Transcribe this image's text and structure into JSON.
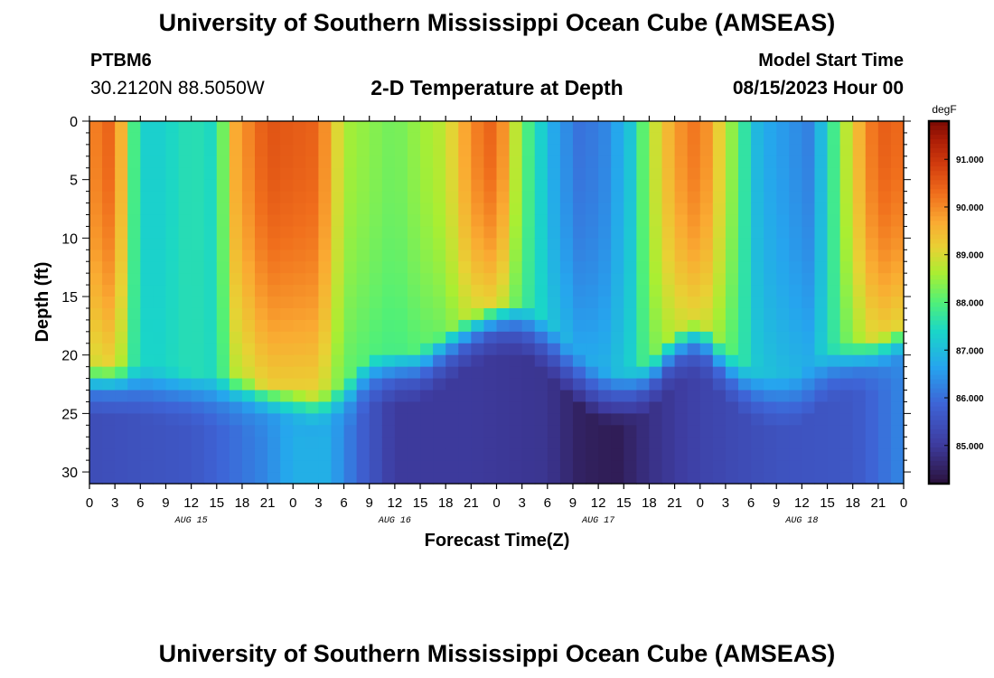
{
  "header": {
    "title": "University of Southern Mississippi Ocean Cube (AMSEAS)",
    "station_id": "PTBM6",
    "station_coords": "30.2120N  88.5050W",
    "plot_title": "2-D Temperature at Depth",
    "model_label": "Model Start Time",
    "model_time": "08/15/2023 Hour 00"
  },
  "footer": {
    "title": "University of Southern Mississippi Ocean Cube (AMSEAS)"
  },
  "chart_data": {
    "type": "heatmap",
    "title": "2-D Temperature at Depth",
    "xlabel": "Forecast Time(Z)",
    "ylabel": "Depth (ft)",
    "xlim": [
      0,
      96
    ],
    "ylim": [
      31,
      0
    ],
    "x_tick_values": [
      0,
      3,
      6,
      9,
      12,
      15,
      18,
      21,
      24,
      27,
      30,
      33,
      36,
      39,
      42,
      45,
      48,
      51,
      54,
      57,
      60,
      63,
      66,
      69,
      72,
      75,
      78,
      81,
      84,
      87,
      90,
      93,
      96
    ],
    "x_tick_labels": [
      "0",
      "3",
      "6",
      "9",
      "12",
      "15",
      "18",
      "21",
      "0",
      "3",
      "6",
      "9",
      "12",
      "15",
      "18",
      "21",
      "0",
      "3",
      "6",
      "9",
      "12",
      "15",
      "18",
      "21",
      "0",
      "3",
      "6",
      "9",
      "12",
      "15",
      "18",
      "21",
      "0"
    ],
    "day_labels": [
      {
        "hour": 12,
        "label": "AUG 15"
      },
      {
        "hour": 36,
        "label": "AUG 16"
      },
      {
        "hour": 60,
        "label": "AUG 17"
      },
      {
        "hour": 84,
        "label": "AUG 18"
      }
    ],
    "y_ticks": [
      0,
      5,
      10,
      15,
      20,
      25,
      30
    ],
    "colorbar": {
      "unit": "degF",
      "min": 84.2,
      "max": 91.8,
      "ticks": [
        85.0,
        86.0,
        87.0,
        88.0,
        89.0,
        90.0,
        91.0
      ],
      "tick_labels": [
        "85.000",
        "86.000",
        "87.000",
        "88.000",
        "89.000",
        "90.000",
        "91.000"
      ]
    },
    "surface_temp_by_hour": [
      [
        0,
        90.0
      ],
      [
        3,
        90.5
      ],
      [
        5,
        88.0
      ],
      [
        7,
        87.2
      ],
      [
        12,
        87.6
      ],
      [
        15,
        87.4
      ],
      [
        17,
        89.6
      ],
      [
        21,
        90.6
      ],
      [
        27,
        90.4
      ],
      [
        30,
        88.6
      ],
      [
        36,
        88.2
      ],
      [
        42,
        88.8
      ],
      [
        45,
        90.0
      ],
      [
        48,
        90.5
      ],
      [
        51,
        88.2
      ],
      [
        55,
        86.6
      ],
      [
        58,
        86.0
      ],
      [
        61,
        86.3
      ],
      [
        64,
        87.2
      ],
      [
        66,
        88.6
      ],
      [
        69,
        89.8
      ],
      [
        72,
        90.3
      ],
      [
        75,
        88.8
      ],
      [
        79,
        86.8
      ],
      [
        85,
        86.2
      ],
      [
        88,
        88.0
      ],
      [
        90,
        89.2
      ],
      [
        93,
        90.5
      ],
      [
        96,
        90.3
      ]
    ],
    "mixed_layer_depth_ft_by_hour": [
      [
        0,
        21
      ],
      [
        6,
        21
      ],
      [
        12,
        21.5
      ],
      [
        18,
        22
      ],
      [
        21,
        22.6
      ],
      [
        27,
        23.4
      ],
      [
        30,
        22.5
      ],
      [
        33,
        20
      ],
      [
        39,
        19.5
      ],
      [
        45,
        16.5
      ],
      [
        48,
        15.5
      ],
      [
        51,
        15.5
      ],
      [
        54,
        17
      ],
      [
        57,
        19.5
      ],
      [
        60,
        21.2
      ],
      [
        63,
        21.5
      ],
      [
        66,
        20.5
      ],
      [
        69,
        18
      ],
      [
        72,
        17
      ],
      [
        75,
        19.5
      ],
      [
        78,
        21.2
      ],
      [
        81,
        21.8
      ],
      [
        84,
        21.5
      ],
      [
        87,
        19.5
      ],
      [
        90,
        19
      ],
      [
        93,
        18.5
      ],
      [
        96,
        17.5
      ]
    ],
    "bottom_temp_by_hour": [
      [
        0,
        85.4
      ],
      [
        12,
        85.6
      ],
      [
        21,
        86.3
      ],
      [
        24,
        86.8
      ],
      [
        28,
        86.8
      ],
      [
        32,
        85.8
      ],
      [
        36,
        85.0
      ],
      [
        45,
        85.0
      ],
      [
        54,
        84.9
      ],
      [
        58,
        84.5
      ],
      [
        62,
        84.4
      ],
      [
        66,
        84.8
      ],
      [
        72,
        85.2
      ],
      [
        81,
        85.5
      ],
      [
        90,
        85.6
      ],
      [
        96,
        86.3
      ]
    ]
  }
}
